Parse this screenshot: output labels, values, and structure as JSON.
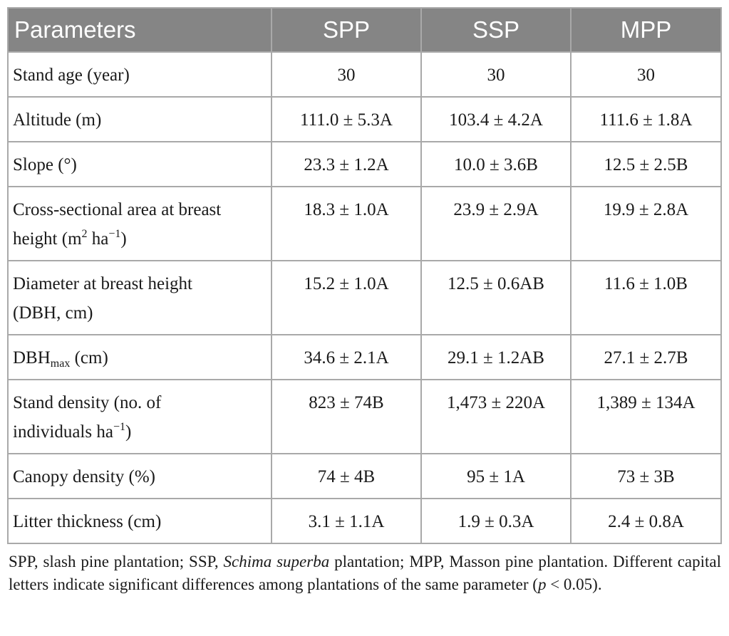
{
  "table": {
    "headers": [
      "Parameters",
      "SPP",
      "SSP",
      "MPP"
    ],
    "rows": [
      {
        "label": "Stand age (year)",
        "values": [
          "30",
          "30",
          "30"
        ]
      },
      {
        "label": "Altitude (m)",
        "values": [
          "111.0 ± 5.3A",
          "103.4 ± 4.2A",
          "111.6 ± 1.8A"
        ]
      },
      {
        "label": "Slope (°)",
        "values": [
          "23.3 ± 1.2A",
          "10.0 ± 3.6B",
          "12.5 ± 2.5B"
        ]
      },
      {
        "label_line1": "Cross-sectional area at breast",
        "label_line2_pre": "height (m",
        "label_sup1": "2",
        "label_line2_mid": " ha",
        "label_sup2": "−1",
        "label_line2_post": ")",
        "values": [
          "18.3 ± 1.0A",
          "23.9 ± 2.9A",
          "19.9 ± 2.8A"
        ]
      },
      {
        "label_line1": "Diameter at breast height",
        "label_line2": "(DBH, cm)",
        "values": [
          "15.2 ± 1.0A",
          "12.5 ± 0.6AB",
          "11.6 ± 1.0B"
        ]
      },
      {
        "label_pre": "DBH",
        "label_sub": "max",
        "label_post": " (cm)",
        "values": [
          "34.6 ± 2.1A",
          "29.1 ± 1.2AB",
          "27.1 ± 2.7B"
        ]
      },
      {
        "label_line1": "Stand density (no. of",
        "label_line2_pre": "individuals ha",
        "label_sup": "−1",
        "label_line2_post": ")",
        "values": [
          "823 ± 74B",
          "1,473 ± 220A",
          "1,389 ± 134A"
        ]
      },
      {
        "label": "Canopy density (%)",
        "values": [
          "74 ± 4B",
          "95 ± 1A",
          "73 ± 3B"
        ]
      },
      {
        "label": "Litter thickness (cm)",
        "values": [
          "3.1 ± 1.1A",
          "1.9 ± 0.3A",
          "2.4 ± 0.8A"
        ]
      }
    ]
  },
  "footnote": {
    "part1": "SPP, slash pine plantation; SSP, ",
    "species": "Schima superba",
    "part2": " plantation; MPP, Masson pine plantation. Different capital letters indicate significant differences among plantations of the same parameter (",
    "p_symbol": "p",
    "part3": " < 0.05)."
  }
}
